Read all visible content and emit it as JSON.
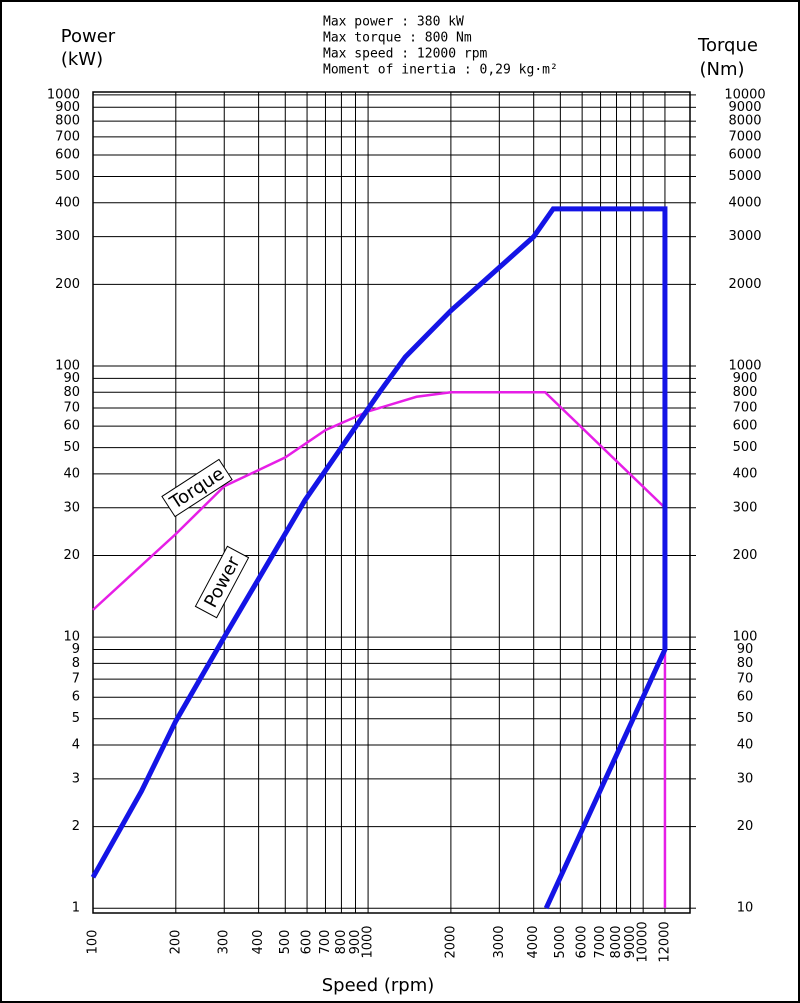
{
  "chart_data": {
    "type": "line",
    "title_lines": [
      "Max power : 380 kW",
      "Max torque : 800 Nm",
      "Max speed : 12000 rpm",
      "Moment of inertia : 0,29 kg·m²"
    ],
    "y_label": [
      "Power",
      "(kW)"
    ],
    "y2_label": [
      "Torque",
      "(Nm)"
    ],
    "x_label": "Speed (rpm)",
    "log_x": true,
    "log_y": true,
    "grid": true,
    "xlim": [
      100,
      14800
    ],
    "ylim": [
      0.96,
      1025
    ],
    "y2lim": [
      9.6,
      10250
    ],
    "xticks": [
      100,
      200,
      300,
      400,
      500,
      600,
      700,
      800,
      900,
      1000,
      2000,
      3000,
      4000,
      5000,
      6000,
      7000,
      8000,
      9000,
      10000,
      12000
    ],
    "yticks": [
      1,
      2,
      3,
      4,
      5,
      6,
      7,
      8,
      9,
      10,
      20,
      30,
      40,
      50,
      60,
      70,
      80,
      90,
      100,
      200,
      300,
      400,
      500,
      600,
      700,
      800,
      900,
      1000
    ],
    "y2ticks": [
      10,
      20,
      30,
      40,
      50,
      60,
      70,
      80,
      90,
      100,
      200,
      300,
      400,
      500,
      600,
      700,
      800,
      900,
      1000,
      2000,
      3000,
      4000,
      5000,
      6000,
      7000,
      8000,
      9000,
      10000
    ],
    "series": [
      {
        "name": "Power",
        "color": "#1414e6",
        "x": [
          100,
          150,
          200,
          300,
          590,
          1100,
          1365,
          2000,
          4000,
          4710,
          12000,
          12000,
          4440
        ],
        "values": [
          1.3,
          2.7,
          4.9,
          10,
          32,
          80,
          108,
          160,
          300,
          380,
          380,
          9,
          1
        ]
      },
      {
        "name": "Torque",
        "color": "#e61ee6",
        "axis": "y2",
        "x": [
          100,
          200,
          300,
          500,
          700,
          1000,
          1500,
          2000,
          4400,
          12000,
          12000
        ],
        "values": [
          126,
          240,
          360,
          460,
          580,
          680,
          770,
          800,
          800,
          300,
          10
        ]
      }
    ]
  }
}
